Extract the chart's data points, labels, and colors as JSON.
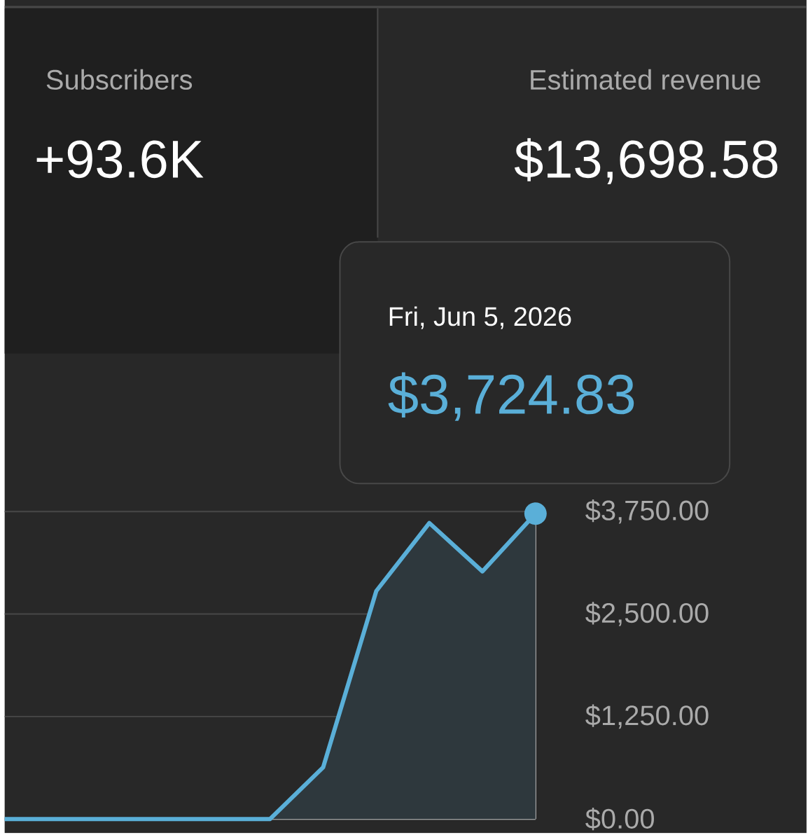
{
  "chart_data": {
    "type": "area",
    "categories": [
      null,
      null,
      null,
      null,
      null,
      null,
      null,
      null,
      null,
      null,
      null
    ],
    "series": [
      {
        "color": "#5aafd8",
        "values": [
          0,
          0,
          0,
          0,
          0,
          0,
          630,
          2780,
          3610,
          3020,
          3724.83
        ]
      }
    ],
    "ylim": [
      0,
      3750
    ],
    "yticks": [
      {
        "value": 0,
        "label": "$0.00"
      },
      {
        "value": 1250,
        "label": "$1,250.00"
      },
      {
        "value": 2500,
        "label": "$2,500.00"
      },
      {
        "value": 3750,
        "label": "$3,750.00"
      }
    ],
    "grid": "y",
    "tick_labels": "y",
    "annotations": [
      "Subscribers",
      "+93.6K",
      "Estimated revenue",
      "$13,698.58",
      "Fri, Jun 5, 2026",
      "$3,724.83"
    ]
  }
}
